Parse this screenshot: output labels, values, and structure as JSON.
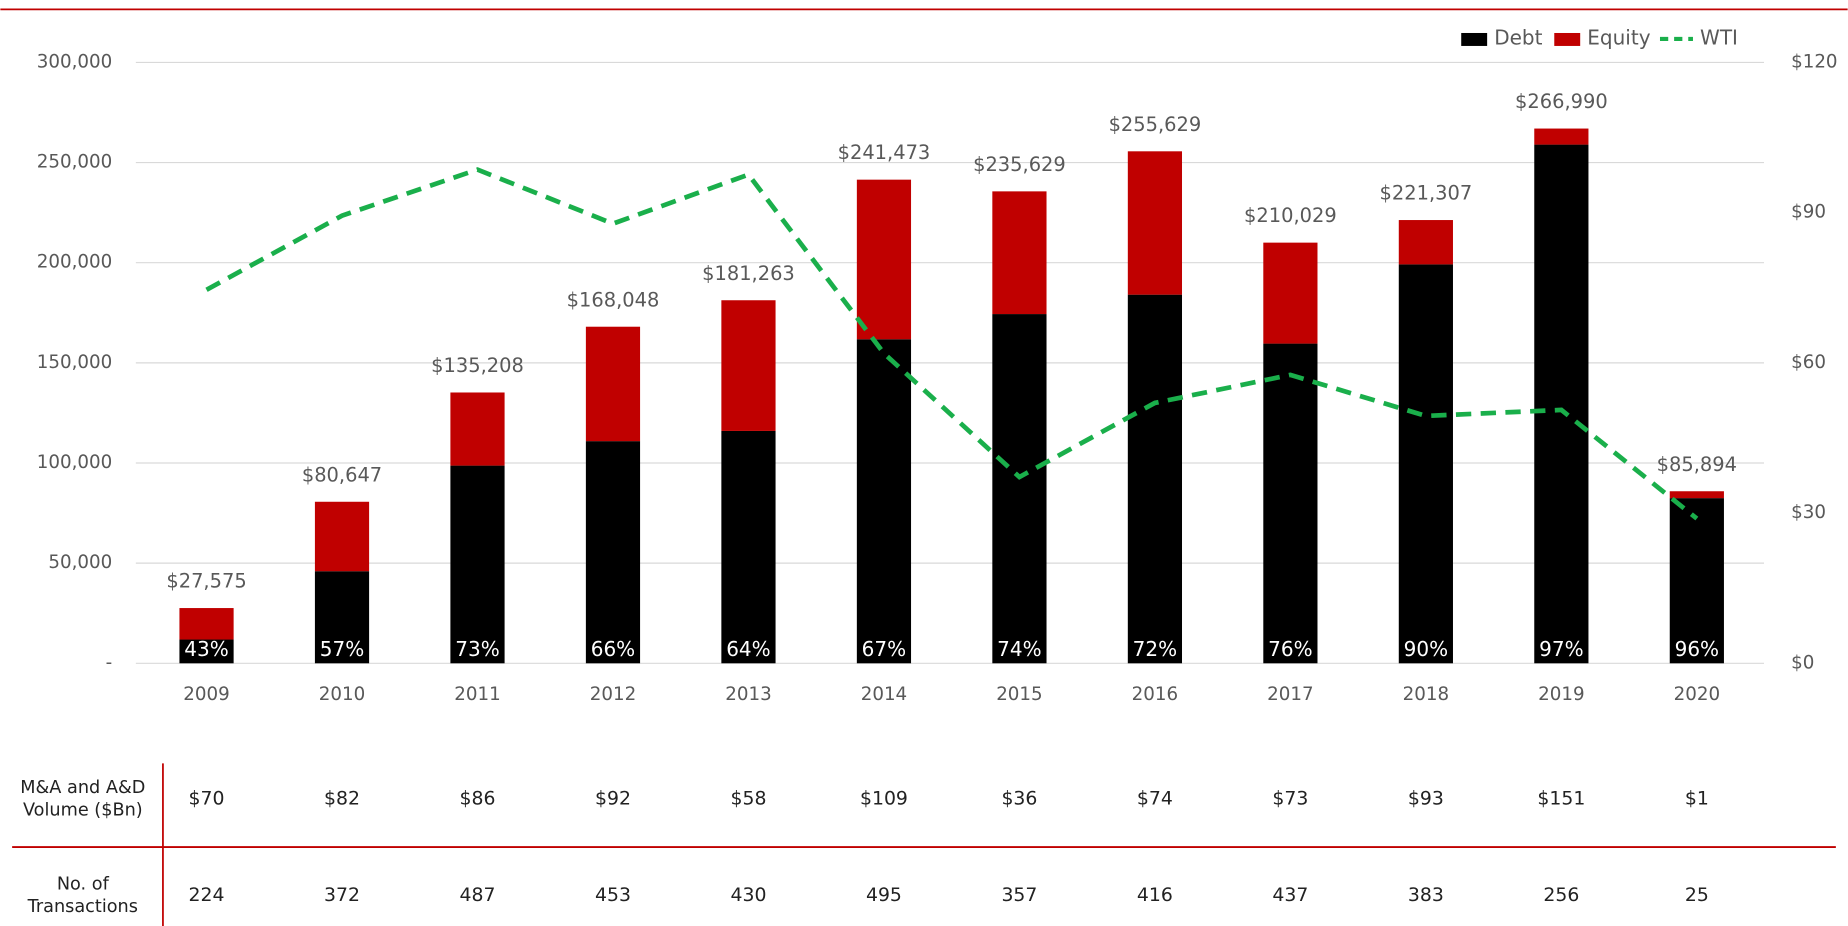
{
  "chart_data": {
    "type": "bar",
    "categories": [
      "2009",
      "2010",
      "2011",
      "2012",
      "2013",
      "2014",
      "2015",
      "2016",
      "2017",
      "2018",
      "2019",
      "2020"
    ],
    "series": [
      {
        "name": "Debt",
        "color": "#000000",
        "values": [
          11857,
          45969,
          98702,
          110912,
          116008,
          161787,
          174365,
          184053,
          159622,
          199176,
          258980,
          82458
        ]
      },
      {
        "name": "Equity",
        "color": "#c00000",
        "values": [
          15718,
          34678,
          36506,
          57136,
          65255,
          79686,
          61264,
          71576,
          50407,
          22131,
          8010,
          3436
        ]
      },
      {
        "name": "WTI",
        "color": "#1aaf4b",
        "type": "line",
        "axis": "y2",
        "values": [
          74.6,
          89.4,
          98.6,
          87.8,
          97.6,
          61.9,
          37.2,
          52.0,
          57.6,
          49.4,
          50.6,
          28.9
        ]
      }
    ],
    "totals": [
      27575,
      80647,
      135208,
      168048,
      181263,
      241473,
      235629,
      255629,
      210029,
      221307,
      266990,
      85894
    ],
    "total_labels": [
      "$27,575",
      "$80,647",
      "$135,208",
      "$168,048",
      "$181,263",
      "$241,473",
      "$235,629",
      "$255,629",
      "$210,029",
      "$221,307",
      "$266,990",
      "$85,894"
    ],
    "debt_share_labels": [
      "43%",
      "57%",
      "73%",
      "66%",
      "64%",
      "67%",
      "74%",
      "72%",
      "76%",
      "90%",
      "97%",
      "96%"
    ],
    "ylim": [
      0,
      300000
    ],
    "yticks": [
      {
        "value": 0,
        "label": "-"
      },
      {
        "value": 50000,
        "label": "50,000"
      },
      {
        "value": 100000,
        "label": "100,000"
      },
      {
        "value": 150000,
        "label": "150,000"
      },
      {
        "value": 200000,
        "label": "200,000"
      },
      {
        "value": 250000,
        "label": "250,000"
      },
      {
        "value": 300000,
        "label": "300,000"
      }
    ],
    "y2lim": [
      0,
      120
    ],
    "y2ticks": [
      {
        "value": 0,
        "label": "$0"
      },
      {
        "value": 30,
        "label": "$30"
      },
      {
        "value": 60,
        "label": "$60"
      },
      {
        "value": 90,
        "label": "$90"
      },
      {
        "value": 120,
        "label": "$120"
      }
    ],
    "grid": true,
    "legend": "top-right"
  },
  "table": {
    "rows": [
      {
        "label": "M&A and A&D Volume ($Bn)",
        "values": [
          "$70",
          "$82",
          "$86",
          "$92",
          "$58",
          "$109",
          "$36",
          "$74",
          "$73",
          "$93",
          "$151",
          "$1"
        ]
      },
      {
        "label": "No. of Transactions",
        "values": [
          224,
          372,
          487,
          453,
          430,
          495,
          357,
          416,
          437,
          383,
          256,
          25
        ]
      }
    ]
  }
}
